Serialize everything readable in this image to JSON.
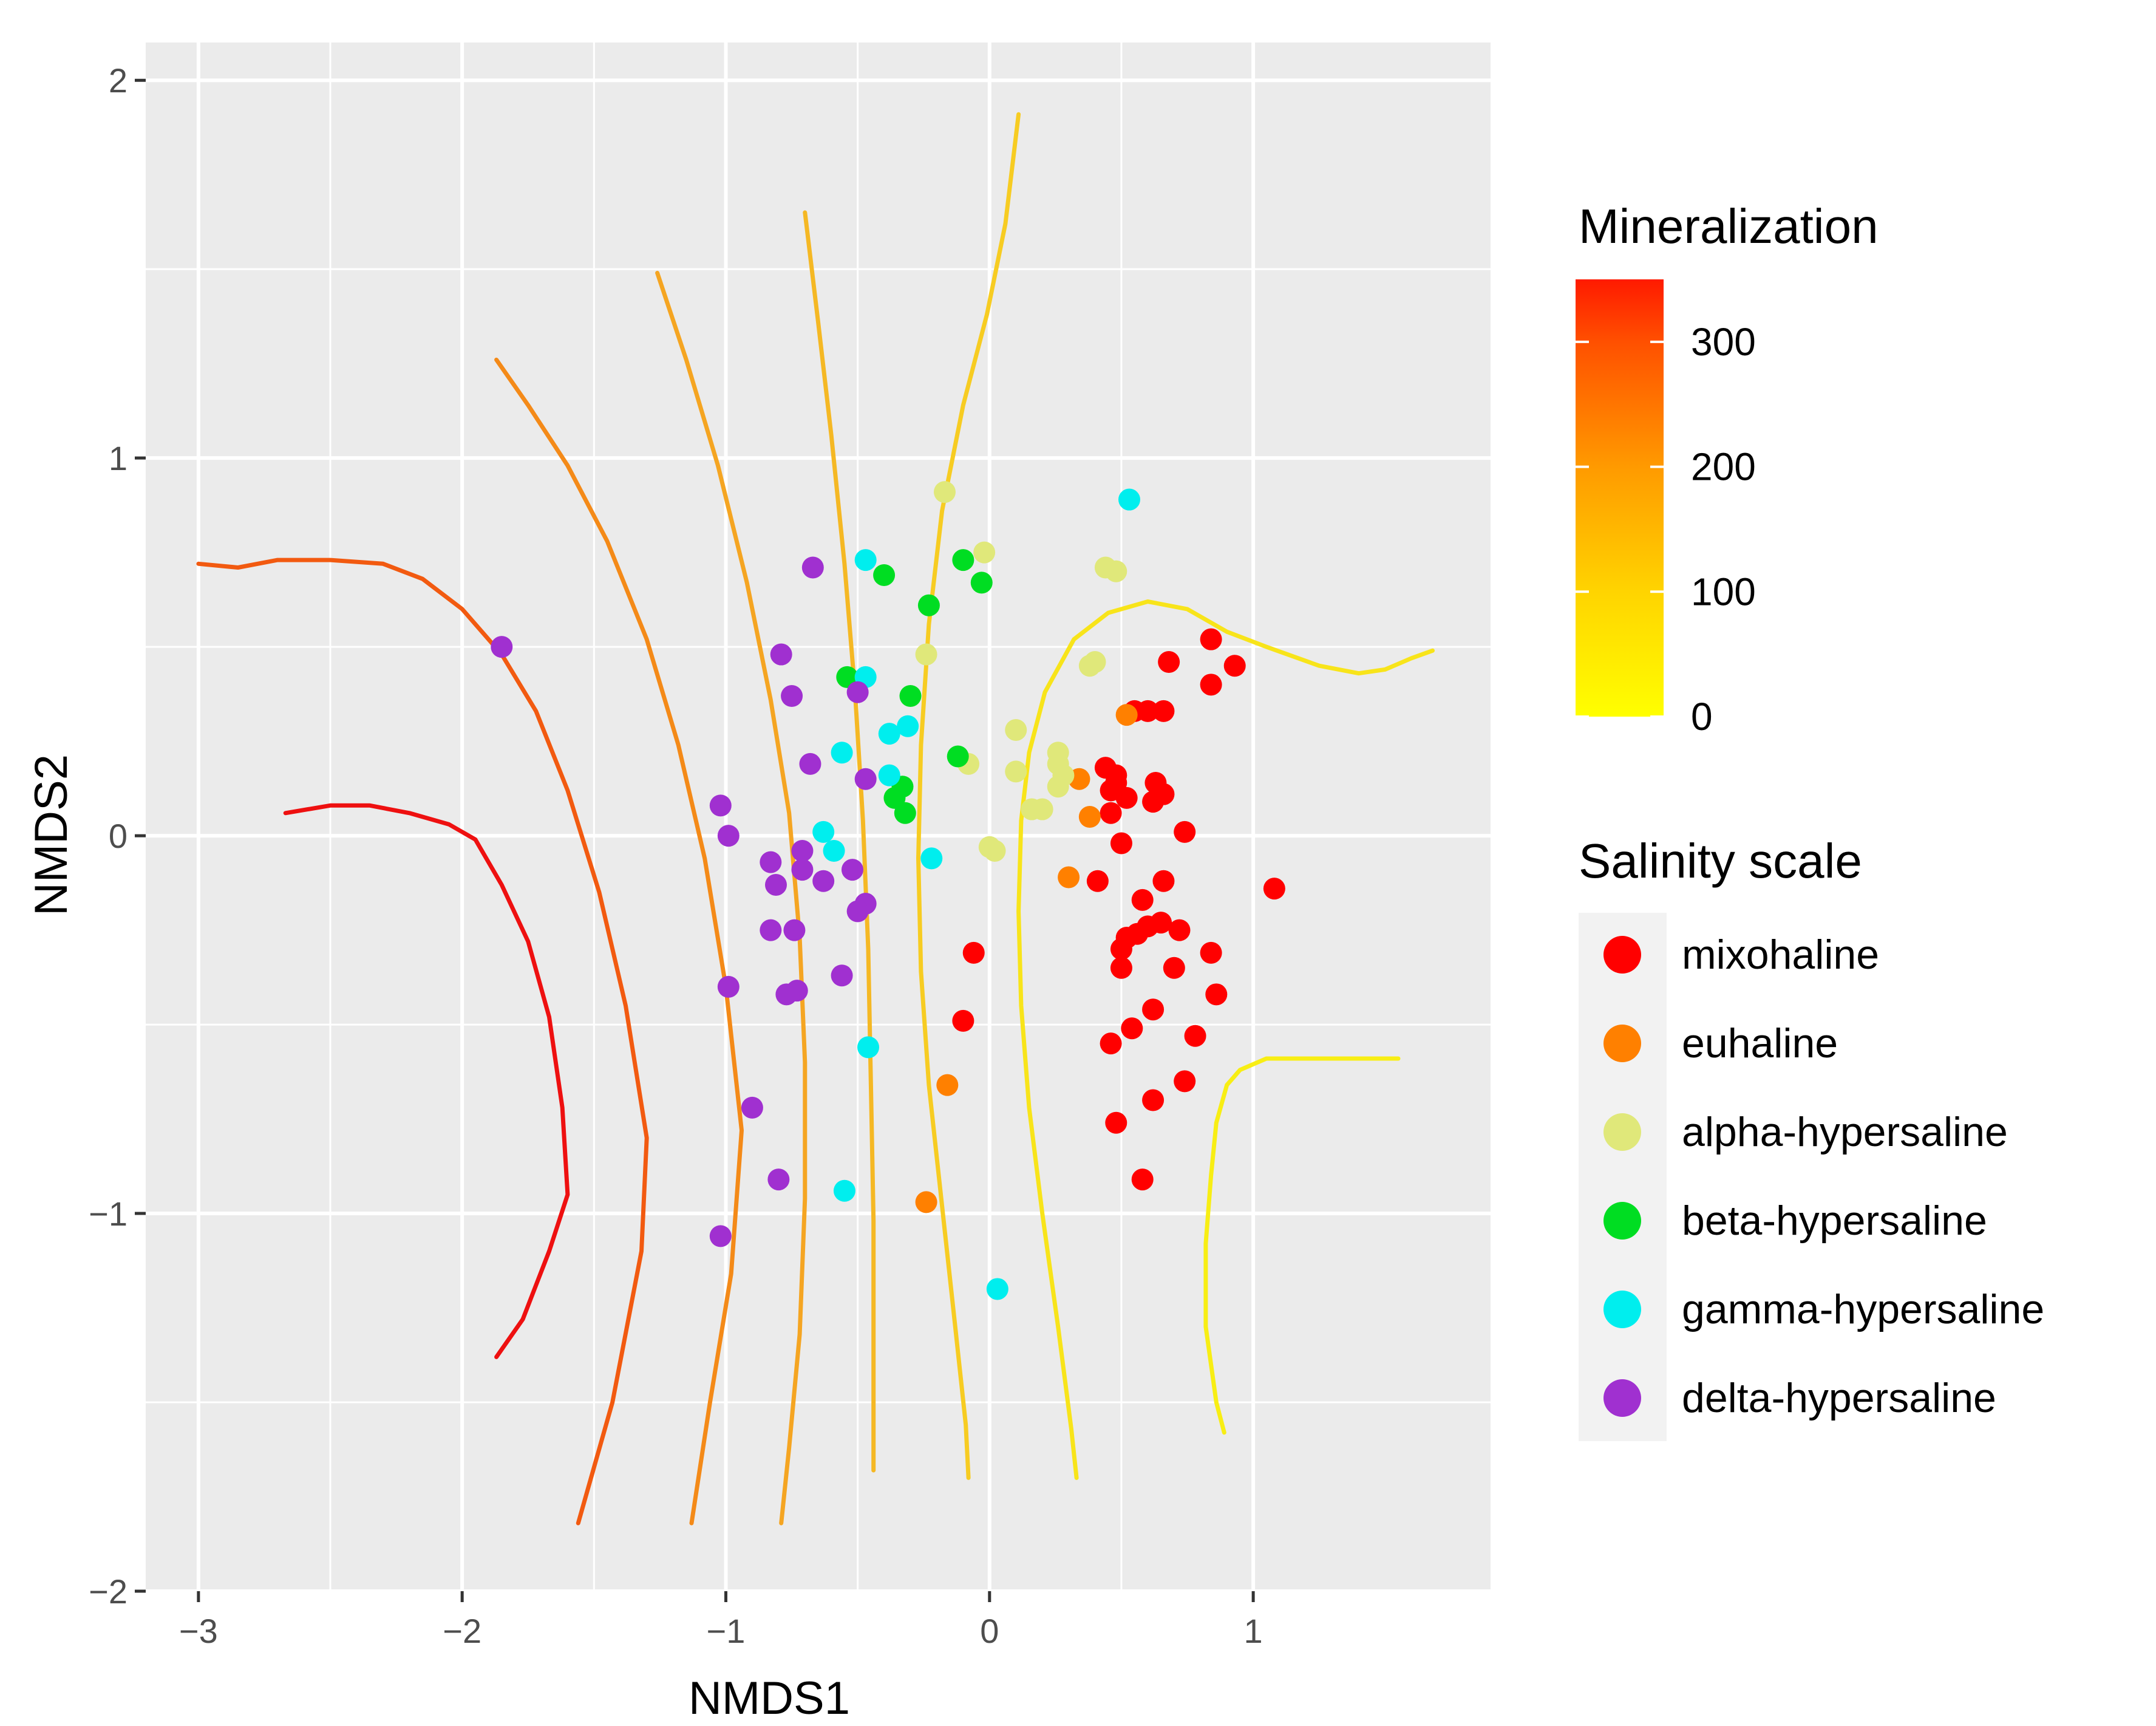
{
  "chart_data": {
    "type": "scatter",
    "title": "",
    "xlabel": "NMDS1",
    "ylabel": "NMDS2",
    "xlim": [
      -3.2,
      1.9
    ],
    "ylim": [
      -2.0,
      2.1
    ],
    "x_ticks": [
      -3,
      -2,
      -1,
      0,
      1
    ],
    "x_tick_labels": [
      "−3",
      "−2",
      "−1",
      "0",
      "1"
    ],
    "y_ticks": [
      -2,
      -1,
      0,
      1,
      2
    ],
    "y_tick_labels": [
      "−2",
      "−1",
      "0",
      "1",
      "2"
    ],
    "grid": true,
    "background": "#ebebeb",
    "colorbar": {
      "title": "Mineralization",
      "range": [
        0,
        350
      ],
      "ticks": [
        0,
        100,
        200,
        300
      ],
      "tick_labels": [
        "0",
        "100",
        "200",
        "300"
      ],
      "stops": [
        {
          "v": 0,
          "color": "#ffff00"
        },
        {
          "v": 100,
          "color": "#ffd400"
        },
        {
          "v": 200,
          "color": "#ff9a00"
        },
        {
          "v": 300,
          "color": "#ff5000"
        },
        {
          "v": 350,
          "color": "#ff1a00"
        }
      ]
    },
    "legend": {
      "title": "Salinity  scale",
      "placement": "right",
      "entries": [
        {
          "key": "mixohaline",
          "label": "mixohaline",
          "color": "#ff0000"
        },
        {
          "key": "euhaline",
          "label": "euhaline",
          "color": "#ff8000"
        },
        {
          "key": "alpha",
          "label": "alpha-hypersaline",
          "color": "#e0e87a"
        },
        {
          "key": "beta",
          "label": "beta-hypersaline",
          "color": "#00dd22"
        },
        {
          "key": "gamma",
          "label": "gamma-hypersaline",
          "color": "#00eeee"
        },
        {
          "key": "delta",
          "label": "delta-hypersaline",
          "color": "#a030d0"
        }
      ]
    },
    "contours": [
      {
        "level": 340,
        "color": "#ee1010",
        "points": [
          [
            -2.67,
            0.06
          ],
          [
            -2.5,
            0.08
          ],
          [
            -2.35,
            0.08
          ],
          [
            -2.2,
            0.06
          ],
          [
            -2.05,
            0.03
          ],
          [
            -1.95,
            -0.01
          ],
          [
            -1.85,
            -0.13
          ],
          [
            -1.75,
            -0.28
          ],
          [
            -1.67,
            -0.48
          ],
          [
            -1.62,
            -0.72
          ],
          [
            -1.6,
            -0.95
          ],
          [
            -1.67,
            -1.1
          ],
          [
            -1.77,
            -1.28
          ],
          [
            -1.87,
            -1.38
          ]
        ]
      },
      {
        "level": 290,
        "color": "#f25a10",
        "points": [
          [
            -3.0,
            0.72
          ],
          [
            -2.85,
            0.71
          ],
          [
            -2.7,
            0.73
          ],
          [
            -2.5,
            0.73
          ],
          [
            -2.3,
            0.72
          ],
          [
            -2.15,
            0.68
          ],
          [
            -2.0,
            0.6
          ],
          [
            -1.85,
            0.48
          ],
          [
            -1.72,
            0.33
          ],
          [
            -1.6,
            0.12
          ],
          [
            -1.48,
            -0.15
          ],
          [
            -1.38,
            -0.45
          ],
          [
            -1.3,
            -0.8
          ],
          [
            -1.32,
            -1.1
          ],
          [
            -1.43,
            -1.5
          ],
          [
            -1.56,
            -1.82
          ]
        ]
      },
      {
        "level": 240,
        "color": "#f48a18",
        "points": [
          [
            -1.87,
            1.26
          ],
          [
            -1.75,
            1.14
          ],
          [
            -1.6,
            0.98
          ],
          [
            -1.45,
            0.78
          ],
          [
            -1.3,
            0.52
          ],
          [
            -1.18,
            0.24
          ],
          [
            -1.08,
            -0.06
          ],
          [
            -1.0,
            -0.4
          ],
          [
            -0.94,
            -0.78
          ],
          [
            -0.98,
            -1.16
          ],
          [
            -1.06,
            -1.5
          ],
          [
            -1.13,
            -1.82
          ]
        ]
      },
      {
        "level": 190,
        "color": "#f5a522",
        "points": [
          [
            -1.26,
            1.49
          ],
          [
            -1.15,
            1.26
          ],
          [
            -1.03,
            0.98
          ],
          [
            -0.92,
            0.67
          ],
          [
            -0.83,
            0.36
          ],
          [
            -0.76,
            0.06
          ],
          [
            -0.72,
            -0.27
          ],
          [
            -0.7,
            -0.6
          ],
          [
            -0.7,
            -0.96
          ],
          [
            -0.72,
            -1.32
          ],
          [
            -0.76,
            -1.62
          ],
          [
            -0.79,
            -1.82
          ]
        ]
      },
      {
        "level": 140,
        "color": "#f5b824",
        "points": [
          [
            -0.7,
            1.65
          ],
          [
            -0.65,
            1.36
          ],
          [
            -0.6,
            1.06
          ],
          [
            -0.55,
            0.72
          ],
          [
            -0.51,
            0.38
          ],
          [
            -0.48,
            0.04
          ],
          [
            -0.46,
            -0.3
          ],
          [
            -0.45,
            -0.66
          ],
          [
            -0.44,
            -1.02
          ],
          [
            -0.44,
            -1.36
          ],
          [
            -0.44,
            -1.68
          ]
        ]
      },
      {
        "level": 90,
        "color": "#f7cc22",
        "points": [
          [
            0.11,
            1.91
          ],
          [
            0.06,
            1.62
          ],
          [
            -0.01,
            1.38
          ],
          [
            -0.1,
            1.14
          ],
          [
            -0.18,
            0.86
          ],
          [
            -0.23,
            0.56
          ],
          [
            -0.26,
            0.24
          ],
          [
            -0.27,
            -0.06
          ],
          [
            -0.26,
            -0.36
          ],
          [
            -0.23,
            -0.66
          ],
          [
            -0.18,
            -0.98
          ],
          [
            -0.13,
            -1.3
          ],
          [
            -0.09,
            -1.56
          ],
          [
            -0.08,
            -1.7
          ]
        ]
      },
      {
        "level": 30,
        "color": "#f8e41a",
        "points": [
          [
            1.68,
            0.49
          ],
          [
            1.6,
            0.47
          ],
          [
            1.5,
            0.44
          ],
          [
            1.4,
            0.43
          ],
          [
            1.25,
            0.45
          ],
          [
            1.05,
            0.5
          ],
          [
            0.9,
            0.54
          ],
          [
            0.75,
            0.6
          ],
          [
            0.6,
            0.62
          ],
          [
            0.45,
            0.59
          ],
          [
            0.32,
            0.52
          ],
          [
            0.21,
            0.38
          ],
          [
            0.15,
            0.22
          ],
          [
            0.12,
            0.04
          ],
          [
            0.11,
            -0.2
          ],
          [
            0.12,
            -0.45
          ],
          [
            0.15,
            -0.72
          ],
          [
            0.2,
            -1.0
          ],
          [
            0.26,
            -1.3
          ],
          [
            0.31,
            -1.57
          ],
          [
            0.33,
            -1.7
          ]
        ]
      },
      {
        "level": 20,
        "color": "#f8ee14",
        "points": [
          [
            1.55,
            -0.59
          ],
          [
            1.35,
            -0.59
          ],
          [
            1.15,
            -0.59
          ],
          [
            1.05,
            -0.59
          ],
          [
            0.95,
            -0.62
          ],
          [
            0.9,
            -0.66
          ],
          [
            0.86,
            -0.76
          ],
          [
            0.84,
            -0.9
          ],
          [
            0.82,
            -1.08
          ],
          [
            0.82,
            -1.3
          ],
          [
            0.86,
            -1.5
          ],
          [
            0.89,
            -1.58
          ]
        ]
      }
    ],
    "points": {
      "mixohaline": [
        [
          0.44,
          0.18
        ],
        [
          0.48,
          0.16
        ],
        [
          0.46,
          0.12
        ],
        [
          0.52,
          0.1
        ],
        [
          0.46,
          0.06
        ],
        [
          0.48,
          0.14
        ],
        [
          0.55,
          0.33
        ],
        [
          0.6,
          0.33
        ],
        [
          0.66,
          0.33
        ],
        [
          0.68,
          0.46
        ],
        [
          0.84,
          0.52
        ],
        [
          0.93,
          0.45
        ],
        [
          0.84,
          0.4
        ],
        [
          0.63,
          0.14
        ],
        [
          0.66,
          0.11
        ],
        [
          0.62,
          0.09
        ],
        [
          0.74,
          0.01
        ],
        [
          0.5,
          -0.02
        ],
        [
          0.41,
          -0.12
        ],
        [
          0.66,
          -0.12
        ],
        [
          0.58,
          -0.17
        ],
        [
          1.08,
          -0.14
        ],
        [
          0.52,
          -0.27
        ],
        [
          0.56,
          -0.26
        ],
        [
          0.6,
          -0.24
        ],
        [
          0.65,
          -0.23
        ],
        [
          0.72,
          -0.25
        ],
        [
          0.5,
          -0.3
        ],
        [
          0.84,
          -0.31
        ],
        [
          0.5,
          -0.35
        ],
        [
          0.7,
          -0.35
        ],
        [
          0.86,
          -0.42
        ],
        [
          0.62,
          -0.46
        ],
        [
          0.54,
          -0.51
        ],
        [
          0.78,
          -0.53
        ],
        [
          0.46,
          -0.55
        ],
        [
          0.74,
          -0.65
        ],
        [
          0.62,
          -0.7
        ],
        [
          0.48,
          -0.76
        ],
        [
          0.58,
          -0.91
        ],
        [
          -0.06,
          -0.31
        ],
        [
          -0.1,
          -0.49
        ]
      ],
      "euhaline": [
        [
          0.52,
          0.32
        ],
        [
          0.34,
          0.15
        ],
        [
          0.38,
          0.05
        ],
        [
          0.3,
          -0.11
        ],
        [
          -0.16,
          -0.66
        ],
        [
          -0.24,
          -0.97
        ]
      ],
      "alpha": [
        [
          -0.17,
          0.91
        ],
        [
          -0.02,
          0.75
        ],
        [
          0.44,
          0.71
        ],
        [
          0.48,
          0.7
        ],
        [
          0.38,
          0.45
        ],
        [
          0.4,
          0.46
        ],
        [
          -0.24,
          0.48
        ],
        [
          0.1,
          0.28
        ],
        [
          -0.08,
          0.19
        ],
        [
          0.26,
          0.22
        ],
        [
          0.26,
          0.19
        ],
        [
          0.1,
          0.17
        ],
        [
          0.26,
          0.13
        ],
        [
          0.28,
          0.16
        ],
        [
          0.16,
          0.07
        ],
        [
          0.2,
          0.07
        ],
        [
          0.0,
          -0.03
        ],
        [
          0.02,
          -0.04
        ]
      ],
      "beta": [
        [
          -0.4,
          0.69
        ],
        [
          -0.1,
          0.73
        ],
        [
          -0.03,
          0.67
        ],
        [
          -0.23,
          0.61
        ],
        [
          -0.54,
          0.42
        ],
        [
          -0.3,
          0.37
        ],
        [
          -0.12,
          0.21
        ],
        [
          -0.33,
          0.13
        ],
        [
          -0.36,
          0.1
        ],
        [
          -0.32,
          0.06
        ]
      ],
      "gamma": [
        [
          0.53,
          0.89
        ],
        [
          -0.47,
          0.73
        ],
        [
          -0.47,
          0.42
        ],
        [
          -0.38,
          0.27
        ],
        [
          -0.31,
          0.29
        ],
        [
          -0.56,
          0.22
        ],
        [
          -0.38,
          0.16
        ],
        [
          -0.63,
          0.01
        ],
        [
          -0.59,
          -0.04
        ],
        [
          -0.22,
          -0.06
        ],
        [
          -0.46,
          -0.56
        ],
        [
          -0.55,
          -0.94
        ],
        [
          0.03,
          -1.2
        ]
      ],
      "delta": [
        [
          -1.85,
          0.5
        ],
        [
          -0.67,
          0.71
        ],
        [
          -0.79,
          0.48
        ],
        [
          -0.75,
          0.37
        ],
        [
          -0.5,
          0.38
        ],
        [
          -0.68,
          0.19
        ],
        [
          -0.47,
          0.15
        ],
        [
          -1.02,
          0.08
        ],
        [
          -0.99,
          0.0
        ],
        [
          -0.71,
          -0.04
        ],
        [
          -0.83,
          -0.07
        ],
        [
          -0.71,
          -0.09
        ],
        [
          -0.52,
          -0.09
        ],
        [
          -0.81,
          -0.13
        ],
        [
          -0.63,
          -0.12
        ],
        [
          -0.47,
          -0.18
        ],
        [
          -0.5,
          -0.2
        ],
        [
          -0.74,
          -0.25
        ],
        [
          -0.83,
          -0.25
        ],
        [
          -0.56,
          -0.37
        ],
        [
          -0.99,
          -0.4
        ],
        [
          -0.77,
          -0.42
        ],
        [
          -0.73,
          -0.41
        ],
        [
          -0.9,
          -0.72
        ],
        [
          -0.8,
          -0.91
        ],
        [
          -1.02,
          -1.06
        ]
      ]
    }
  }
}
